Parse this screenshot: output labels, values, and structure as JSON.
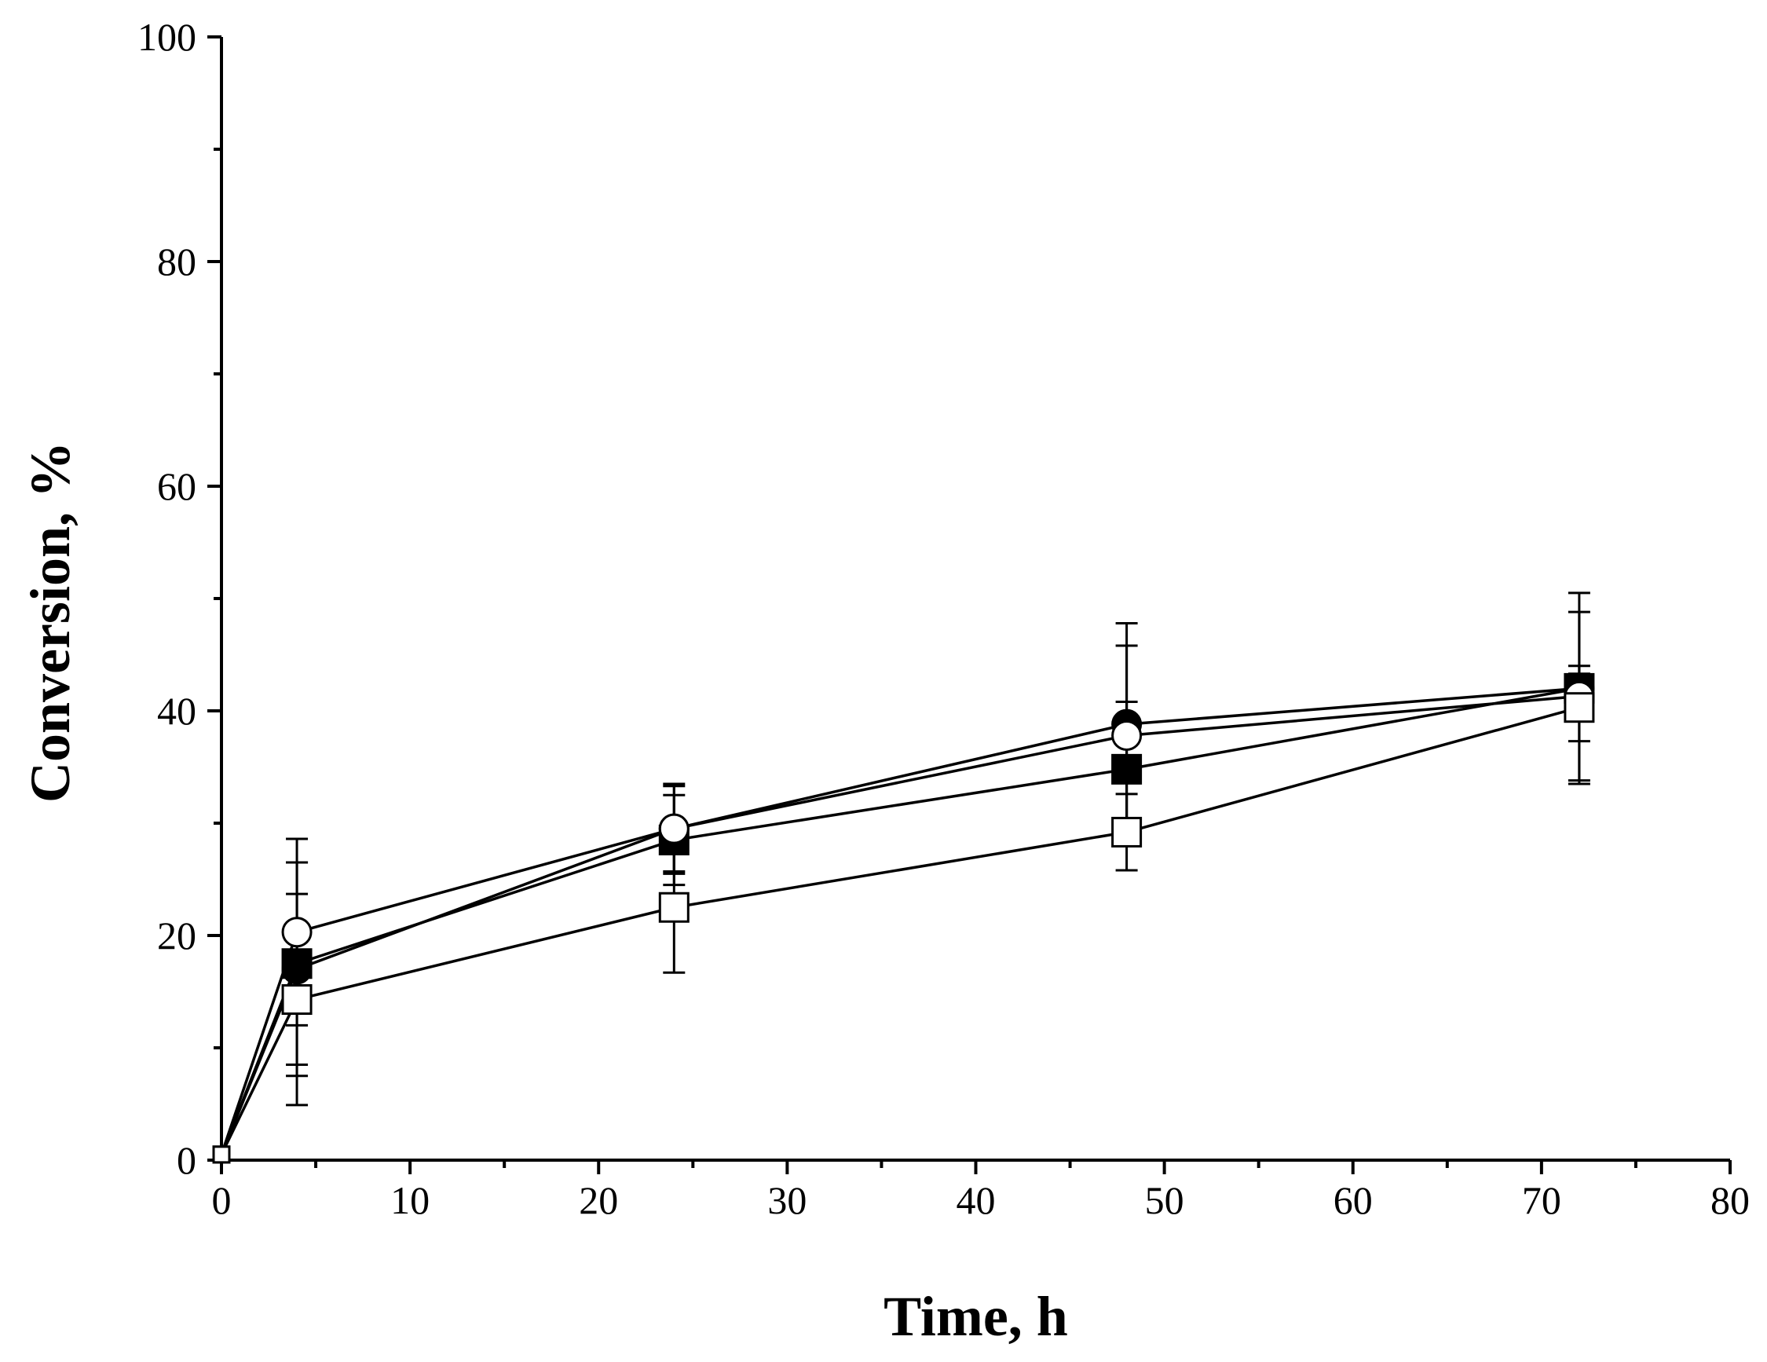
{
  "chart_data": {
    "type": "line",
    "title": "",
    "xlabel": "Time, h",
    "ylabel": "Conversion, %",
    "xlim": [
      0,
      80
    ],
    "ylim": [
      0,
      100
    ],
    "xticks": [
      0,
      10,
      20,
      30,
      40,
      50,
      60,
      70,
      80
    ],
    "yticks": [
      0,
      20,
      40,
      60,
      80,
      100
    ],
    "x_minor_step": 5,
    "y_minor_step": 10,
    "grid": false,
    "legend": "none",
    "series": [
      {
        "name": "filled-circle",
        "marker": "circle",
        "filled": true,
        "x": [
          0,
          4,
          24,
          48,
          72
        ],
        "y": [
          0.5,
          17,
          29.5,
          38.8,
          42
        ],
        "err": [
          0,
          9.5,
          4,
          9,
          8.5
        ]
      },
      {
        "name": "filled-square",
        "marker": "square",
        "filled": true,
        "x": [
          0,
          4,
          24,
          48,
          72
        ],
        "y": [
          0.5,
          17.5,
          28.5,
          34.8,
          42
        ],
        "err": [
          0,
          9,
          4,
          6,
          2
        ]
      },
      {
        "name": "open-circle",
        "marker": "circle",
        "filled": false,
        "x": [
          0,
          4,
          24,
          48,
          72
        ],
        "y": [
          0.5,
          20.3,
          29.5,
          37.8,
          41.3
        ],
        "err": [
          0,
          8.3,
          3.8,
          8,
          7.5
        ]
      },
      {
        "name": "open-square",
        "marker": "square",
        "filled": false,
        "x": [
          0,
          4,
          24,
          48,
          72
        ],
        "y": [
          0.5,
          14.3,
          22.5,
          29.2,
          40.3
        ],
        "err": [
          0,
          9.4,
          5.8,
          3.4,
          3
        ]
      }
    ]
  }
}
